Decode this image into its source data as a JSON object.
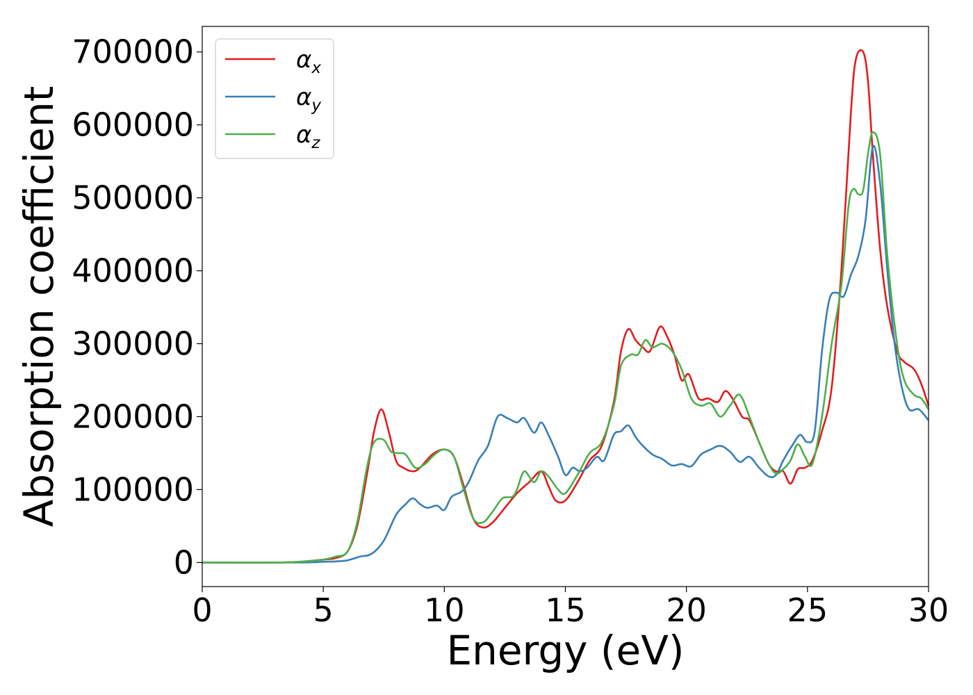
{
  "chart_data": {
    "type": "line",
    "title": "",
    "xlabel": "Energy (eV)",
    "ylabel": "Absorption coefficient",
    "xlim": [
      0,
      30
    ],
    "ylim": [
      -33000,
      735000
    ],
    "xticks": [
      0,
      5,
      10,
      15,
      20,
      25,
      30
    ],
    "yticks": [
      0,
      100000,
      200000,
      300000,
      400000,
      500000,
      600000,
      700000
    ],
    "grid": false,
    "legend_position": "top-left",
    "series": [
      {
        "name": "α_x",
        "label_main": "α",
        "label_sub": "x",
        "color": "#e41a1c",
        "x": [
          0,
          3,
          4,
          5,
          5.5,
          6,
          6.4,
          6.8,
          7.1,
          7.4,
          7.7,
          8.0,
          8.3,
          8.7,
          9.0,
          9.5,
          10.0,
          10.4,
          10.8,
          11.2,
          11.6,
          12.0,
          12.5,
          13.0,
          13.5,
          14.0,
          14.3,
          14.6,
          15.0,
          15.5,
          16.0,
          16.5,
          17.0,
          17.3,
          17.6,
          17.9,
          18.2,
          18.5,
          18.9,
          19.2,
          19.5,
          19.8,
          20.1,
          20.5,
          20.9,
          21.3,
          21.6,
          21.9,
          22.3,
          22.6,
          23.0,
          23.4,
          23.7,
          24.0,
          24.3,
          24.6,
          24.9,
          25.2,
          25.6,
          26.0,
          26.4,
          26.8,
          27.0,
          27.3,
          27.5,
          27.7,
          28.0,
          28.3,
          28.7,
          29.0,
          29.4,
          29.7,
          30.0
        ],
        "values": [
          0,
          0,
          1000,
          4000,
          6000,
          15000,
          50000,
          120000,
          180000,
          210000,
          180000,
          140000,
          130000,
          125000,
          130000,
          148000,
          155000,
          145000,
          105000,
          60000,
          48000,
          55000,
          75000,
          95000,
          110000,
          125000,
          105000,
          85000,
          85000,
          110000,
          140000,
          160000,
          220000,
          290000,
          320000,
          305000,
          295000,
          290000,
          323000,
          310000,
          285000,
          250000,
          258000,
          225000,
          225000,
          220000,
          235000,
          225000,
          200000,
          195000,
          165000,
          135000,
          125000,
          125000,
          108000,
          128000,
          130000,
          140000,
          180000,
          240000,
          400000,
          620000,
          690000,
          700000,
          660000,
          560000,
          430000,
          350000,
          290000,
          275000,
          265000,
          245000,
          215000
        ]
      },
      {
        "name": "α_y",
        "label_main": "α",
        "label_sub": "y",
        "color": "#377eb8",
        "x": [
          0,
          4,
          5,
          5.5,
          6,
          6.5,
          7.0,
          7.5,
          8.0,
          8.4,
          8.7,
          9.0,
          9.3,
          9.7,
          10.0,
          10.3,
          10.7,
          11.0,
          11.4,
          11.8,
          12.2,
          12.6,
          13.0,
          13.3,
          13.7,
          14.0,
          14.3,
          14.7,
          15.0,
          15.3,
          15.6,
          15.9,
          16.3,
          16.6,
          17.0,
          17.3,
          17.6,
          17.9,
          18.2,
          18.6,
          19.0,
          19.4,
          19.8,
          20.2,
          20.6,
          21.0,
          21.4,
          21.8,
          22.2,
          22.6,
          23.0,
          23.4,
          23.7,
          24.0,
          24.4,
          24.7,
          25.0,
          25.3,
          25.6,
          25.9,
          26.2,
          26.5,
          26.8,
          27.1,
          27.4,
          27.7,
          28.0,
          28.3,
          28.6,
          28.9,
          29.2,
          29.6,
          30.0
        ],
        "values": [
          0,
          0,
          1000,
          1500,
          3000,
          8000,
          12000,
          30000,
          65000,
          80000,
          88000,
          80000,
          75000,
          78000,
          72000,
          90000,
          97000,
          110000,
          140000,
          160000,
          200000,
          198000,
          192000,
          198000,
          178000,
          192000,
          175000,
          145000,
          120000,
          130000,
          125000,
          130000,
          145000,
          140000,
          175000,
          180000,
          188000,
          172000,
          160000,
          148000,
          142000,
          133000,
          135000,
          132000,
          148000,
          155000,
          160000,
          152000,
          138000,
          145000,
          130000,
          118000,
          120000,
          140000,
          162000,
          175000,
          165000,
          180000,
          290000,
          360000,
          370000,
          365000,
          395000,
          420000,
          470000,
          570000,
          520000,
          400000,
          300000,
          240000,
          210000,
          210000,
          195000
        ]
      },
      {
        "name": "α_z",
        "label_main": "α",
        "label_sub": "z",
        "color": "#4daf4a",
        "x": [
          0,
          3,
          4,
          5,
          5.5,
          6,
          6.4,
          6.8,
          7.1,
          7.5,
          7.8,
          8.1,
          8.4,
          8.8,
          9.2,
          9.6,
          10.0,
          10.4,
          10.8,
          11.2,
          11.6,
          12.0,
          12.4,
          12.8,
          13.0,
          13.3,
          13.7,
          14.0,
          14.3,
          14.7,
          15.0,
          15.5,
          16.0,
          16.5,
          17.0,
          17.3,
          17.7,
          18.0,
          18.3,
          18.6,
          19.0,
          19.4,
          19.8,
          20.2,
          20.6,
          21.0,
          21.4,
          21.8,
          22.2,
          22.6,
          23.0,
          23.4,
          23.7,
          24.0,
          24.3,
          24.6,
          24.9,
          25.2,
          25.6,
          26.0,
          26.4,
          26.7,
          26.9,
          27.1,
          27.3,
          27.5,
          27.7,
          28.0,
          28.3,
          28.7,
          29.0,
          29.4,
          29.7,
          30.0
        ],
        "values": [
          0,
          0,
          1000,
          4000,
          8000,
          15000,
          55000,
          130000,
          165000,
          168000,
          152000,
          150000,
          148000,
          130000,
          135000,
          148000,
          155000,
          145000,
          100000,
          60000,
          55000,
          70000,
          88000,
          90000,
          100000,
          125000,
          110000,
          125000,
          118000,
          100000,
          95000,
          120000,
          150000,
          165000,
          215000,
          270000,
          285000,
          285000,
          305000,
          295000,
          300000,
          290000,
          265000,
          225000,
          215000,
          218000,
          200000,
          215000,
          230000,
          200000,
          165000,
          135000,
          122000,
          128000,
          140000,
          162000,
          145000,
          135000,
          200000,
          300000,
          380000,
          490000,
          512000,
          505000,
          510000,
          560000,
          590000,
          560000,
          420000,
          300000,
          250000,
          230000,
          225000,
          210000
        ]
      }
    ]
  }
}
